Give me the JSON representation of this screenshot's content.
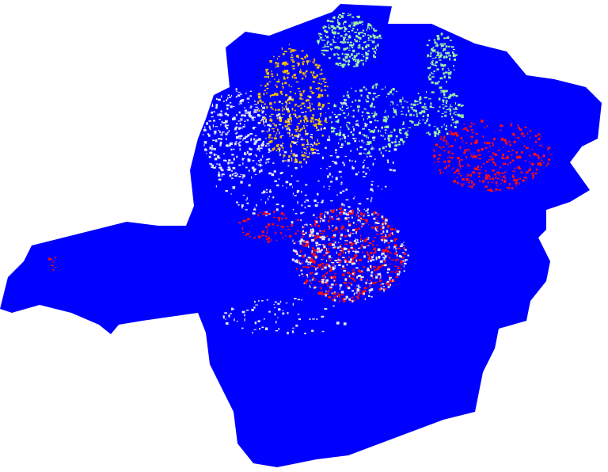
{
  "map": {
    "background_color": "#ffffff",
    "colors": {
      "base": "#0000fe",
      "class_green": "#9ff29f",
      "class_yellow": "#f5c000",
      "class_red": "#ff1010",
      "class_light": "#e8e8f0"
    }
  }
}
